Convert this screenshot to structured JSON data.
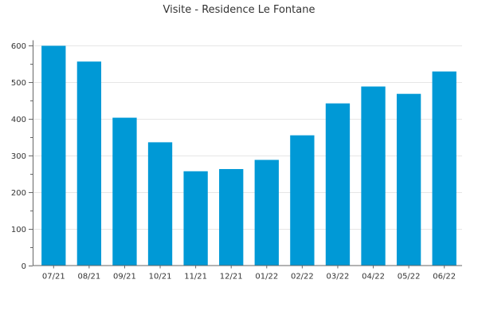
{
  "chart_data": {
    "type": "bar",
    "title": "Visite - Residence Le Fontane",
    "xlabel": "",
    "ylabel": "",
    "categories": [
      "07/21",
      "08/21",
      "09/21",
      "10/21",
      "11/21",
      "12/21",
      "01/22",
      "02/22",
      "03/22",
      "04/22",
      "05/22",
      "06/22"
    ],
    "values": [
      598,
      555,
      402,
      335,
      256,
      262,
      287,
      354,
      441,
      487,
      467,
      528
    ],
    "ylim": [
      0,
      600
    ],
    "yticks": [
      0,
      100,
      200,
      300,
      400,
      500,
      600
    ],
    "grid": true,
    "legend": "none",
    "bar_color": "#0099d6",
    "gridline_color": "#e6e6e6",
    "axis_color": "#666666"
  }
}
